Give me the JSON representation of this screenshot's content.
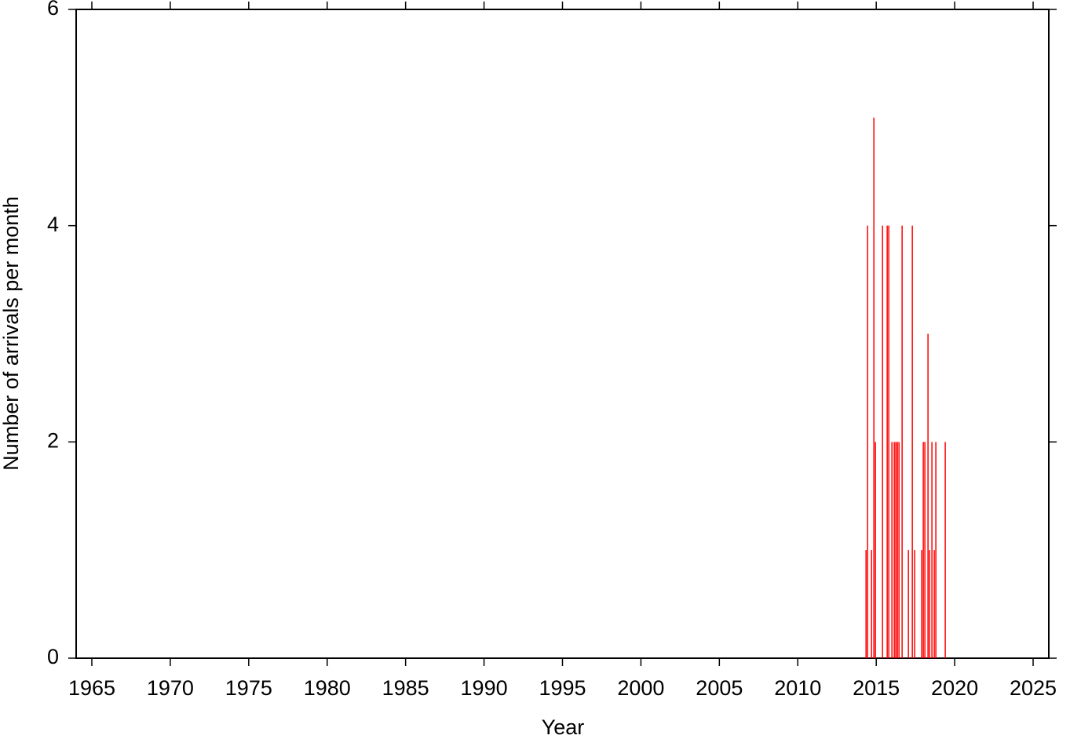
{
  "chart_data": {
    "type": "bar",
    "xlabel": "Year",
    "ylabel": "Number of arrivals per month",
    "color": "#ff0000",
    "x": [
      2014.35,
      2014.45,
      2014.7,
      2014.85,
      2014.95,
      2015.4,
      2015.7,
      2015.8,
      2016.0,
      2016.15,
      2016.25,
      2016.35,
      2016.45,
      2016.65,
      2017.05,
      2017.3,
      2017.45,
      2017.9,
      2018.0,
      2018.1,
      2018.3,
      2018.4,
      2018.55,
      2018.7,
      2018.8,
      2019.4
    ],
    "values": [
      1,
      4,
      1,
      5,
      2,
      4,
      4,
      4,
      2,
      2,
      2,
      2,
      2,
      4,
      1,
      4,
      1,
      1,
      2,
      2,
      3,
      1,
      2,
      1,
      2,
      2
    ],
    "xlim": [
      1964,
      2026
    ],
    "xticks": [
      1965,
      1970,
      1975,
      1980,
      1985,
      1990,
      1995,
      2000,
      2005,
      2010,
      2015,
      2020,
      2025
    ],
    "ylim": [
      0,
      6
    ],
    "yticks": [
      0,
      2,
      4,
      6
    ]
  }
}
